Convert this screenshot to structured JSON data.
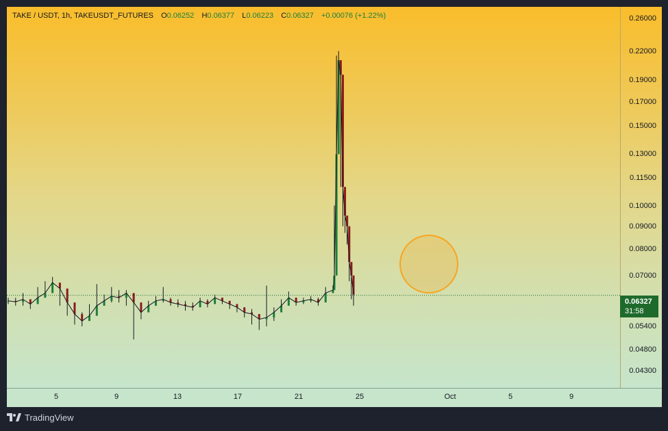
{
  "legend": {
    "symbol": "TAKE / USDT, 1h, TAKEUSDT_FUTURES",
    "o_key": "O",
    "o_val": "0.06252",
    "h_key": "H",
    "h_val": "0.06377",
    "l_key": "L",
    "l_val": "0.06223",
    "c_key": "C",
    "c_val": "0.06327",
    "change": "+0.00076 (+1.22%)"
  },
  "price_tag": {
    "price": "0.06327",
    "timer": "31:58"
  },
  "footer": {
    "brand": "TradingView"
  },
  "colors": {
    "up": "#1b7f3a",
    "down": "#8b1a1a",
    "candle": "#131722",
    "last_price_line": "#1e6a2c",
    "highlight_circle": "#f5a623"
  },
  "chart_data": {
    "type": "line",
    "title": "",
    "xlabel": "",
    "ylabel": "",
    "y_scale": "log",
    "ylim": [
      0.04,
      0.27
    ],
    "y_ticks": [
      "0.26000",
      "0.22000",
      "0.19000",
      "0.17000",
      "0.15000",
      "0.13000",
      "0.11500",
      "0.10000",
      "0.09000",
      "0.08000",
      "0.07000",
      "0.05400",
      "0.04800",
      "0.04300"
    ],
    "x_ticks": [
      "5",
      "9",
      "13",
      "17",
      "21",
      "25",
      "Oct",
      "5",
      "9"
    ],
    "last_price": 0.06327,
    "series": [
      {
        "values": [
          0.0615,
          0.0612,
          0.062,
          0.0605,
          0.0625,
          0.064,
          0.0675,
          0.0655,
          0.061,
          0.0575,
          0.0555,
          0.057,
          0.06,
          0.0615,
          0.063,
          0.0625,
          0.064,
          0.061,
          0.058,
          0.06,
          0.0615,
          0.062,
          0.061,
          0.0605,
          0.06,
          0.0595,
          0.0615,
          0.0605,
          0.0625,
          0.0615,
          0.0605,
          0.0595,
          0.058,
          0.0575,
          0.056,
          0.0565,
          0.058,
          0.06,
          0.0625,
          0.061,
          0.0615,
          0.062,
          0.061,
          0.064,
          0.065,
          0.07,
          0.13,
          0.21,
          0.195,
          0.11,
          0.095,
          0.09,
          0.075,
          0.07,
          0.0635
        ],
        "highs": [
          0.0625,
          0.0625,
          0.064,
          0.062,
          0.066,
          0.068,
          0.0695,
          0.067,
          0.0625,
          0.06,
          0.058,
          0.0605,
          0.067,
          0.0635,
          0.066,
          0.065,
          0.065,
          0.0625,
          0.06,
          0.0615,
          0.063,
          0.066,
          0.0625,
          0.062,
          0.0615,
          0.061,
          0.0625,
          0.062,
          0.0635,
          0.0625,
          0.0615,
          0.0605,
          0.0595,
          0.059,
          0.0575,
          0.0665,
          0.0595,
          0.062,
          0.0645,
          0.0625,
          0.0625,
          0.063,
          0.0625,
          0.066,
          0.0665,
          0.1,
          0.215,
          0.22,
          0.205,
          0.12,
          0.1,
          0.095,
          0.08,
          0.075,
          0.068
        ],
        "lows": [
          0.0605,
          0.06,
          0.06,
          0.059,
          0.0615,
          0.0625,
          0.0645,
          0.06,
          0.057,
          0.0545,
          0.054,
          0.056,
          0.059,
          0.06,
          0.061,
          0.061,
          0.06,
          0.0505,
          0.056,
          0.059,
          0.06,
          0.061,
          0.06,
          0.0595,
          0.0585,
          0.0585,
          0.06,
          0.0595,
          0.061,
          0.0605,
          0.059,
          0.058,
          0.0565,
          0.0545,
          0.053,
          0.054,
          0.0555,
          0.0585,
          0.0605,
          0.06,
          0.0605,
          0.061,
          0.06,
          0.062,
          0.064,
          0.065,
          0.095,
          0.18,
          0.11,
          0.09,
          0.087,
          0.082,
          0.068,
          0.062,
          0.06
        ]
      }
    ]
  }
}
